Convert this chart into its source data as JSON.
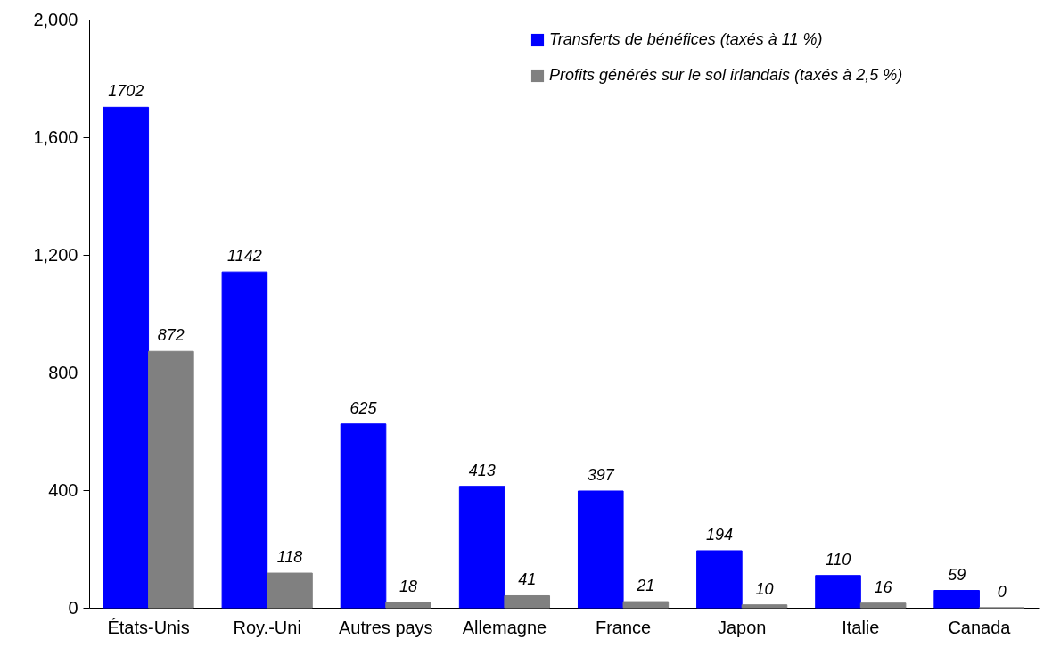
{
  "chart_data": {
    "type": "bar",
    "categories": [
      "États-Unis",
      "Roy.-Uni",
      "Autres pays",
      "Allemagne",
      "France",
      "Japon",
      "Italie",
      "Canada"
    ],
    "series": [
      {
        "name": "Transferts de bénéfices (taxés à 11 %)",
        "color": "#0000ff",
        "values": [
          1702,
          1142,
          625,
          413,
          397,
          194,
          110,
          59
        ]
      },
      {
        "name": "Profits générés sur le sol irlandais (taxés à 2,5 %)",
        "color": "#808080",
        "values": [
          872,
          118,
          18,
          41,
          21,
          10,
          16,
          0
        ]
      }
    ],
    "ylim": [
      0,
      2000
    ],
    "yticks": [
      0,
      {
        "value": 400,
        "label": "400"
      },
      {
        "value": 800,
        "label": "800"
      },
      {
        "value": 1200,
        "label": "1,200"
      },
      {
        "value": 1600,
        "label": "1,600"
      },
      {
        "value": 2000,
        "label": "2,000"
      }
    ],
    "grid": false,
    "legend": "top right",
    "data_labels": true
  }
}
